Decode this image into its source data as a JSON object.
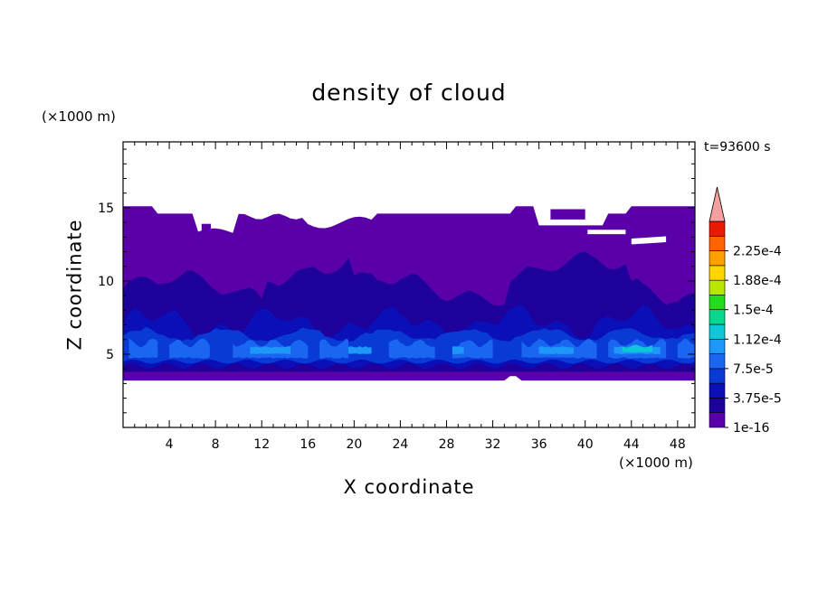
{
  "chart_data": {
    "type": "heatmap",
    "title": "density of cloud",
    "xlabel": "X coordinate",
    "ylabel": "Z coordinate",
    "x_unit": "(×1000 m)",
    "y_unit": "(×1000 m)",
    "time_label": "t=93600 s",
    "xlim": [
      0,
      49.5
    ],
    "ylim": [
      0,
      19.5
    ],
    "x_ticks": [
      4,
      8,
      12,
      16,
      20,
      24,
      28,
      32,
      36,
      40,
      44,
      48
    ],
    "y_ticks": [
      5,
      10,
      15
    ],
    "colorbar": {
      "levels": [
        1e-16,
        1.875e-05,
        3.75e-05,
        5.625e-05,
        7.5e-05,
        9.375e-05,
        0.0001125,
        0.00013125,
        0.00015,
        0.00016875,
        0.0001875,
        0.00020625,
        0.000225,
        0.00024375
      ],
      "labels": [
        "1e-16",
        "3.75e-5",
        "7.5e-5",
        "1.12e-4",
        "1.5e-4",
        "1.88e-4",
        "2.25e-4"
      ],
      "colors": [
        "#5a00a8",
        "#1e009a",
        "#0a0fb8",
        "#0a3ad6",
        "#1a66f0",
        "#1e98f8",
        "#0ec8d8",
        "#08d88e",
        "#22dc1e",
        "#b8e800",
        "#ffd400",
        "#ffa000",
        "#ff6400",
        "#e81a00"
      ],
      "extend_color": "#f4a0a0"
    },
    "regions": [
      {
        "desc": "cloud-top layer",
        "x": [
          0,
          49.5
        ],
        "z": [
          3.2,
          15.2
        ],
        "level": "1e-16"
      },
      {
        "desc": "mid layer",
        "x": [
          0,
          49.5
        ],
        "z": [
          4,
          11
        ],
        "level": "1.875e-5"
      },
      {
        "desc": "dense band",
        "x": [
          0,
          49.5
        ],
        "z": [
          4.2,
          8
        ],
        "level": "3.75e-5"
      },
      {
        "desc": "peak band",
        "x": [
          0,
          49.5
        ],
        "z": [
          4.6,
          6
        ],
        "level": "7.5e-5"
      },
      {
        "desc": "peak core",
        "x": [
          42,
          47
        ],
        "z": [
          5,
          5.8
        ],
        "level": "1.125e-4"
      }
    ]
  }
}
